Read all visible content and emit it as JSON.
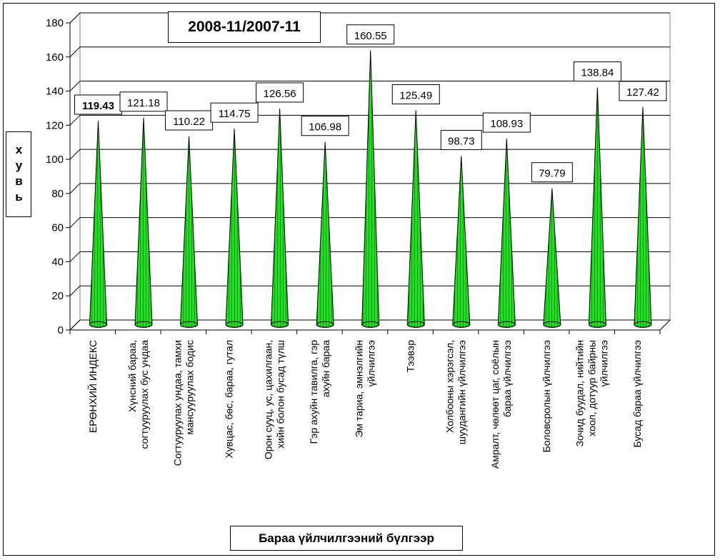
{
  "chart_data": {
    "type": "bar",
    "title": "2008-11/2007-11",
    "ylabel": "хувь",
    "xlabel": "Бараа үйлчилгээний бүлгээр",
    "ylim": [
      0,
      180
    ],
    "yticks": [
      0,
      20,
      40,
      60,
      80,
      100,
      120,
      140,
      160,
      180
    ],
    "grid": true,
    "bar_color": "#22dd22",
    "categories": [
      "ЕРӨНХИЙ ИНДЕКС",
      "Хүнсний бараа, согтууруулах бус ундаа",
      "Согтууруулах ундаа, тамхи мансууруулах бодис",
      "Хувцас, бөс, бараа, гутал",
      "Орон сууц, ус, цахилгаан, хийн болон бусад түлш",
      "Гэр ахуйн тавилга, гэр ахуйн бараа",
      "Эм тариа, эмнэлгийн үйлчилгээ",
      "Тээвэр",
      "Холбооны хэрэгсэл, шуудангийн үйлчилгээ",
      "Амралт, чөлөөт цаг, соёлын бараа үйлчилгээ",
      "Боловсролын үйлчилгээ",
      "Зочид буудал, нийтийн хоол, дотуур байрны үйлчилгээ",
      "Бусад бараа үйлчилгээ"
    ],
    "values": [
      119.43,
      121.18,
      110.22,
      114.75,
      126.56,
      106.98,
      160.55,
      125.49,
      98.73,
      108.93,
      79.79,
      138.84,
      127.42
    ],
    "data_labels": [
      "119.43",
      "121.18",
      "110.22",
      "114.75",
      "126.56",
      "106.98",
      "160.55",
      "125.49",
      "98.73",
      "108.93",
      "79.79",
      "138.84",
      "127.42"
    ]
  }
}
